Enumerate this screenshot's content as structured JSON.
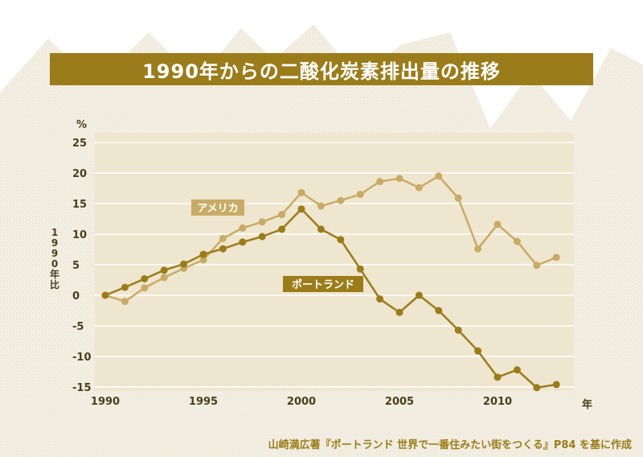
{
  "title": "1990年からの二酸化炭素排出量の推移",
  "source": "山崎満広著『ポートランド 世界で一番住みたい街をつくる』P84 を基に作成",
  "colors": {
    "accent": "#9a7c1a",
    "usa": "#c8ab66",
    "portland": "#9a7c1a",
    "plot_bg": "#efe6cf",
    "grid": "#ffffff",
    "text": "#4a3f1a"
  },
  "chart_data": {
    "type": "line",
    "ylabel": "1990年比",
    "yunit": "%",
    "xunit": "年",
    "xlim": [
      1990,
      2014
    ],
    "ylim": [
      -16,
      25
    ],
    "xticks": [
      1990,
      1995,
      2000,
      2005,
      2010
    ],
    "yticks": [
      25,
      20,
      15,
      10,
      5,
      0,
      -5,
      -10,
      -15
    ],
    "ytick_labels": [
      "25",
      "20",
      "15",
      "10",
      "5",
      "0",
      "-5",
      "-10",
      "-15"
    ],
    "grid": true,
    "series": [
      {
        "name": "アメリカ",
        "color": "#c8ab66",
        "x": [
          1990,
          1991,
          1992,
          1993,
          1994,
          1995,
          1996,
          1997,
          1998,
          1999,
          2000,
          2001,
          2002,
          2003,
          2004,
          2005,
          2006,
          2007,
          2008,
          2009,
          2010,
          2011,
          2012,
          2013
        ],
        "y": [
          0,
          -1,
          1.2,
          2.9,
          4.4,
          5.8,
          9.3,
          11,
          12,
          13.2,
          16.8,
          14.6,
          15.5,
          16.5,
          18.6,
          19.1,
          17.6,
          19.5,
          15.9,
          7.6,
          11.6,
          8.8,
          4.9,
          6.2
        ]
      },
      {
        "name": "ポートランド",
        "color": "#9a7c1a",
        "x": [
          1990,
          1991,
          1992,
          1993,
          1994,
          1995,
          1996,
          1997,
          1998,
          1999,
          2000,
          2001,
          2002,
          2003,
          2004,
          2005,
          2006,
          2007,
          2008,
          2009,
          2010,
          2011,
          2012,
          2013
        ],
        "y": [
          0,
          1.3,
          2.7,
          4.1,
          5.1,
          6.7,
          7.6,
          8.7,
          9.6,
          10.8,
          14.1,
          10.8,
          9.1,
          4.3,
          -0.6,
          -2.8,
          0,
          -2.5,
          -5.7,
          -9.1,
          -13.4,
          -12.2,
          -15.1,
          -14.6
        ]
      }
    ]
  }
}
